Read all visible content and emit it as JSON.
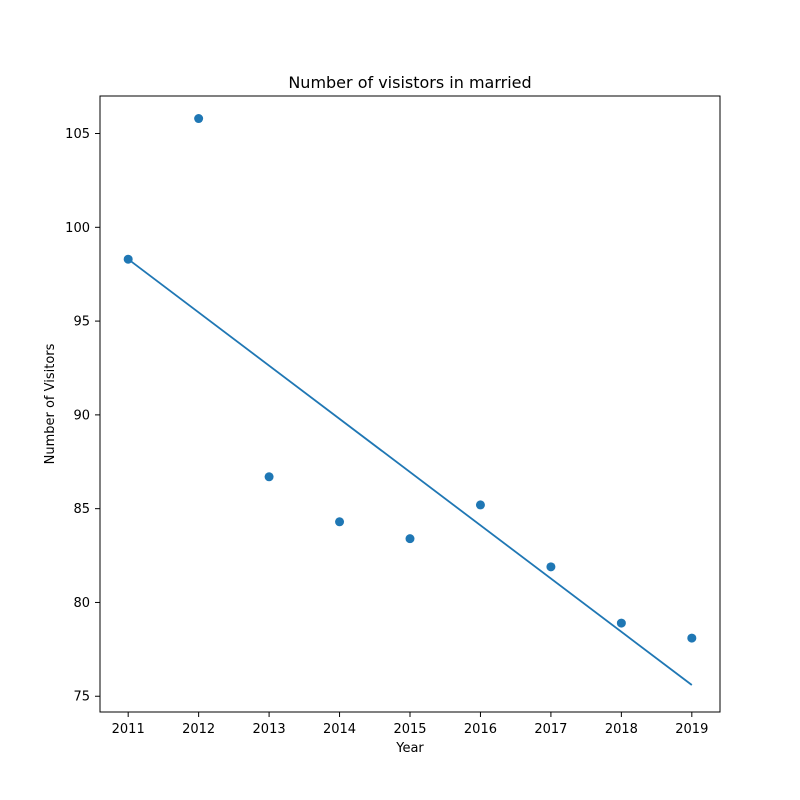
{
  "chart_data": {
    "type": "scatter",
    "title": "Number of visistors in married",
    "xlabel": "Year",
    "ylabel": "Number of Visitors",
    "x": [
      2011,
      2012,
      2013,
      2014,
      2015,
      2016,
      2017,
      2018,
      2019
    ],
    "series": [
      {
        "kind": "scatter",
        "values": [
          98.3,
          105.8,
          86.7,
          84.3,
          83.4,
          85.2,
          81.9,
          78.9,
          78.1
        ]
      },
      {
        "kind": "line",
        "x": [
          2011,
          2019
        ],
        "values": [
          98.3,
          75.6
        ]
      }
    ],
    "xlim": [
      2010.6,
      2019.4
    ],
    "ylim": [
      74.16,
      107.0
    ],
    "xticks": [
      "2011",
      "2012",
      "2013",
      "2014",
      "2015",
      "2016",
      "2017",
      "2018",
      "2019"
    ],
    "yticks": [
      "75",
      "80",
      "85",
      "90",
      "95",
      "100",
      "105"
    ],
    "grid": false,
    "color": "#1f77b4"
  }
}
